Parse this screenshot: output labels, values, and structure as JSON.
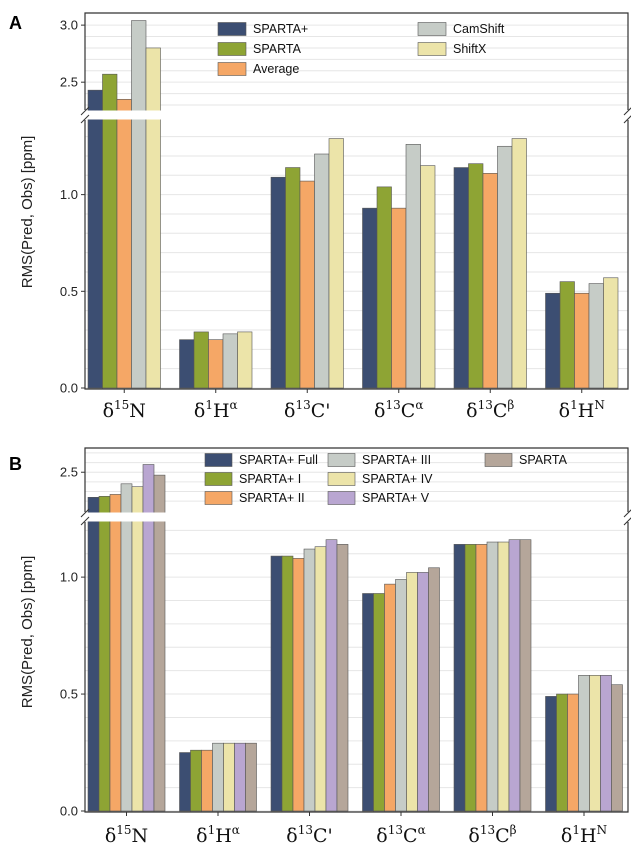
{
  "chart_data": [
    {
      "type": "bar",
      "panel": "A",
      "ylabel": "RMS(Pred, Obs) [ppm]",
      "categories": [
        {
          "delta": "δ",
          "iso": "15",
          "nuc": "N",
          "sup": ""
        },
        {
          "delta": "δ",
          "iso": "1",
          "nuc": "H",
          "sup": "α"
        },
        {
          "delta": "δ",
          "iso": "13",
          "nuc": "C'",
          "sup": ""
        },
        {
          "delta": "δ",
          "iso": "13",
          "nuc": "C",
          "sup": "α"
        },
        {
          "delta": "δ",
          "iso": "13",
          "nuc": "C",
          "sup": "β"
        },
        {
          "delta": "δ",
          "iso": "1",
          "nuc": "H",
          "sup": "N"
        }
      ],
      "yticks_lower": [
        "0.0",
        "0.5",
        "1.0"
      ],
      "yticks_upper": [
        "2.5",
        "3.0"
      ],
      "ylim_lower": [
        0,
        1.36
      ],
      "ylim_upper": [
        2.3,
        3.08
      ],
      "axis_break": true,
      "grid": true,
      "legend_position": "top-center",
      "series": [
        {
          "name": "SPARTA+",
          "color": "#3c4e72",
          "values": [
            2.43,
            0.25,
            1.09,
            0.93,
            1.14,
            0.49
          ]
        },
        {
          "name": "SPARTA",
          "color": "#8ea434",
          "values": [
            2.57,
            0.29,
            1.14,
            1.04,
            1.16,
            0.55
          ]
        },
        {
          "name": "Average",
          "color": "#f5a766",
          "values": [
            2.35,
            0.25,
            1.07,
            0.93,
            1.11,
            0.49
          ]
        },
        {
          "name": "CamShift",
          "color": "#c6ccc7",
          "values": [
            3.04,
            0.28,
            1.21,
            1.26,
            1.25,
            0.54
          ]
        },
        {
          "name": "ShiftX",
          "color": "#ece4a9",
          "values": [
            2.8,
            0.29,
            1.29,
            1.15,
            1.29,
            0.57
          ]
        }
      ]
    },
    {
      "type": "bar",
      "panel": "B",
      "ylabel": "RMS(Pred, Obs) [ppm]",
      "categories": [
        {
          "delta": "δ",
          "iso": "15",
          "nuc": "N",
          "sup": ""
        },
        {
          "delta": "δ",
          "iso": "1",
          "nuc": "H",
          "sup": "α"
        },
        {
          "delta": "δ",
          "iso": "13",
          "nuc": "C'",
          "sup": ""
        },
        {
          "delta": "δ",
          "iso": "13",
          "nuc": "C",
          "sup": "α"
        },
        {
          "delta": "δ",
          "iso": "13",
          "nuc": "C",
          "sup": "β"
        },
        {
          "delta": "δ",
          "iso": "1",
          "nuc": "H",
          "sup": "N"
        }
      ],
      "yticks_lower": [
        "0.0",
        "0.5",
        "1.0"
      ],
      "yticks_upper": [
        "2.5"
      ],
      "ylim_lower": [
        0,
        1.21
      ],
      "ylim_upper": [
        2.15,
        2.72
      ],
      "axis_break": true,
      "grid": true,
      "legend_position": "top-right",
      "series": [
        {
          "name": "SPARTA+ Full",
          "color": "#3c4e72",
          "values": [
            2.24,
            0.25,
            1.09,
            0.93,
            1.14,
            0.49
          ]
        },
        {
          "name": "SPARTA+ I",
          "color": "#8ea434",
          "values": [
            2.25,
            0.26,
            1.09,
            0.93,
            1.14,
            0.5
          ]
        },
        {
          "name": "SPARTA+ II",
          "color": "#f5a766",
          "values": [
            2.27,
            0.26,
            1.08,
            0.97,
            1.14,
            0.5
          ]
        },
        {
          "name": "SPARTA+ III",
          "color": "#c6ccc7",
          "values": [
            2.38,
            0.29,
            1.12,
            0.99,
            1.15,
            0.58
          ]
        },
        {
          "name": "SPARTA+ IV",
          "color": "#ece4a9",
          "values": [
            2.35,
            0.29,
            1.13,
            1.02,
            1.15,
            0.58
          ]
        },
        {
          "name": "SPARTA+ V",
          "color": "#b9a6d1",
          "values": [
            2.58,
            0.29,
            1.16,
            1.02,
            1.16,
            0.58
          ]
        },
        {
          "name": "SPARTA",
          "color": "#b5a69a",
          "values": [
            2.47,
            0.29,
            1.14,
            1.04,
            1.16,
            0.54
          ]
        }
      ]
    }
  ]
}
